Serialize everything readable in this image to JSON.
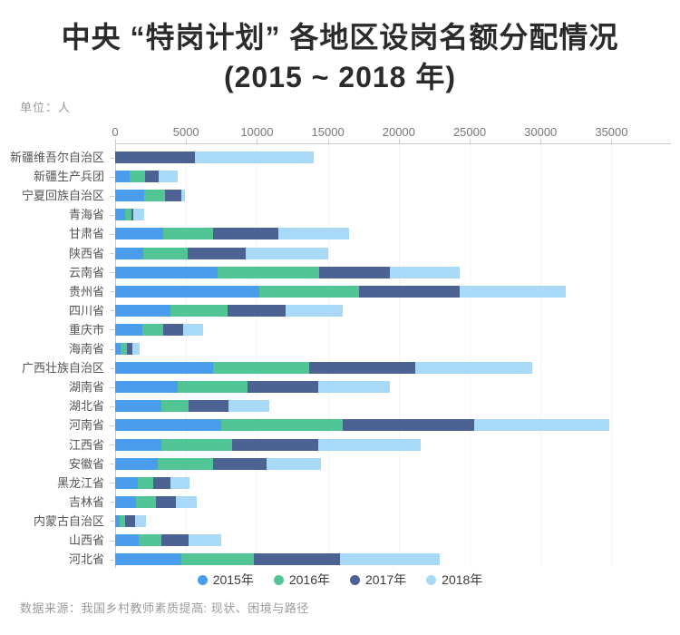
{
  "header": {
    "title_line1": "中央 “特岗计划” 各地区设岗名额分配情况",
    "title_line2": "(2015 ~ 2018 年)",
    "unit_label": "单位：人"
  },
  "footer": {
    "source": "数据来源：我国乡村教师素质提高: 现状、困境与路径"
  },
  "colors": {
    "series_2015": "#4a9ded",
    "series_2016": "#52c596",
    "series_2017": "#4c6292",
    "series_2018": "#a8daf8",
    "axis": "#cccccc",
    "grid": "#f4f4f4",
    "tick_label": "#777777",
    "category_label": "#555555",
    "title_text": "#2b2b2b",
    "muted_text": "#9b9b9b"
  },
  "chart_data": {
    "type": "bar",
    "orientation": "horizontal",
    "stacked": true,
    "title": "中央“特岗计划”各地区设岗名额分配情况(2015~2018年)",
    "unit": "人",
    "xlim": [
      0,
      39000
    ],
    "x_ticks": [
      0,
      5000,
      10000,
      15000,
      20000,
      25000,
      30000,
      35000
    ],
    "axis_position": "top",
    "legend_position": "bottom",
    "grid": true,
    "categories": [
      "新疆维吾尔自治区",
      "新疆生产兵团",
      "宁夏回族自治区",
      "青海省",
      "甘肃省",
      "陕西省",
      "云南省",
      "贵州省",
      "四川省",
      "重庆市",
      "海南省",
      "广西壮族自治区",
      "湖南省",
      "湖北省",
      "河南省",
      "江西省",
      "安徽省",
      "黑龙江省",
      "吉林省",
      "内蒙古自治区",
      "山西省",
      "河北省"
    ],
    "series": [
      {
        "name": "2015年",
        "color": "#4a9ded",
        "values": [
          0,
          1050,
          2070,
          730,
          3400,
          2000,
          7200,
          10180,
          3920,
          1930,
          390,
          6930,
          4380,
          3270,
          7450,
          3270,
          3020,
          1600,
          1470,
          310,
          1650,
          4690
        ]
      },
      {
        "name": "2016年",
        "color": "#52c596",
        "values": [
          0,
          1070,
          1430,
          390,
          3530,
          3100,
          7200,
          7000,
          4000,
          1470,
          440,
          6730,
          4950,
          1930,
          8580,
          4950,
          3860,
          1080,
          1420,
          390,
          1630,
          5100
        ]
      },
      {
        "name": "2017年",
        "color": "#4c6292",
        "values": [
          5600,
          960,
          1180,
          150,
          4590,
          4100,
          5000,
          7100,
          4070,
          1420,
          390,
          7520,
          5020,
          2780,
          9280,
          6130,
          3790,
          1190,
          1420,
          700,
          1930,
          6060
        ]
      },
      {
        "name": "2018年",
        "color": "#a8daf8",
        "values": [
          8400,
          1350,
          260,
          790,
          4970,
          5800,
          4900,
          7470,
          4040,
          1370,
          520,
          8250,
          5030,
          2890,
          9530,
          7210,
          3820,
          1390,
          1420,
          800,
          2270,
          7010
        ]
      }
    ]
  }
}
